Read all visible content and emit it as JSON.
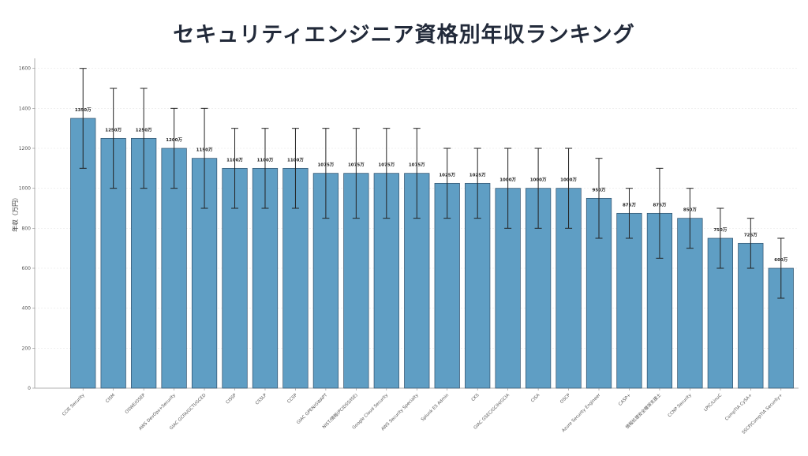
{
  "chart_data": {
    "type": "bar",
    "title": "セキュリティエンジニア資格別年収ランキング",
    "xlabel": "",
    "ylabel": "年収（万円）",
    "ylim": [
      0,
      1650
    ],
    "yticks": [
      0,
      200,
      400,
      600,
      800,
      1000,
      1200,
      1400,
      1600
    ],
    "grid": true,
    "bar_color": "#5f9ec4",
    "bar_edge_color": "#2f4f6a",
    "error_bar_color": "#222222",
    "categories": [
      "CCIE Security",
      "CISM",
      "OSWE/OSEP",
      "AWS DevOps+Security",
      "GIAC GCFA/GCTI/GCED",
      "CISSP",
      "CSSLP",
      "CCSP",
      "GIAC GPEN/GWAPT",
      "NIST/情報(PCIDSS/ISE)",
      "Google Cloud Security",
      "AWS Security Specialty",
      "Splunk ES Admin",
      "CKS",
      "GIAC GSEC/GCIH/GCIA",
      "CISA",
      "OSCP",
      "Azure Security Engineer",
      "CASP+",
      "情報処理安全確保支援士",
      "CCNP Security",
      "LPIC/LinuC",
      "CompTIA CySA+",
      "SSCP/CompTIA Security+"
    ],
    "values": [
      1350,
      1250,
      1250,
      1200,
      1150,
      1100,
      1100,
      1100,
      1075,
      1075,
      1075,
      1075,
      1025,
      1025,
      1000,
      1000,
      1000,
      950,
      875,
      875,
      850,
      750,
      725,
      600
    ],
    "error_low": [
      1100,
      1000,
      1000,
      1000,
      900,
      900,
      900,
      900,
      850,
      850,
      850,
      850,
      850,
      850,
      800,
      800,
      800,
      750,
      750,
      650,
      700,
      600,
      600,
      450
    ],
    "error_high": [
      1600,
      1500,
      1500,
      1400,
      1400,
      1300,
      1300,
      1300,
      1300,
      1300,
      1300,
      1300,
      1200,
      1200,
      1200,
      1200,
      1200,
      1150,
      1000,
      1100,
      1000,
      900,
      850,
      750
    ],
    "data_labels": [
      "1350万",
      "1250万",
      "1250万",
      "1200万",
      "1150万",
      "1100万",
      "1100万",
      "1100万",
      "1075万",
      "1075万",
      "1075万",
      "1075万",
      "1025万",
      "1025万",
      "1000万",
      "1000万",
      "1000万",
      "950万",
      "875万",
      "875万",
      "850万",
      "750万",
      "725万",
      "600万"
    ]
  }
}
